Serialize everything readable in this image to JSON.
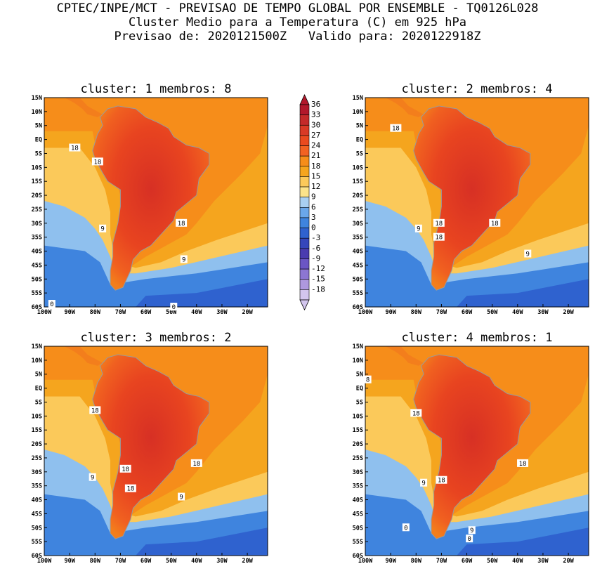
{
  "header": {
    "line1": "CPTEC/INPE/MCT - PREVISAO DE TEMPO GLOBAL POR ENSEMBLE - TQ0126L028",
    "line2": "Cluster Medio para a Temperatura (C) em 925 hPa",
    "line3": "Previsao de: 2020121500Z   Valido para: 2020122918Z"
  },
  "colorbar": {
    "levels": [
      "36",
      "33",
      "30",
      "27",
      "24",
      "21",
      "18",
      "15",
      "12",
      "9",
      "6",
      "3",
      "0",
      "-3",
      "-6",
      "-9",
      "-12",
      "-15",
      "-18"
    ],
    "colors": [
      "#b2182b",
      "#c42a2a",
      "#d93a26",
      "#ea4a1f",
      "#f26222",
      "#f68d1a",
      "#f5a51e",
      "#fbc95a",
      "#fbe38a",
      "#a9d0f2",
      "#6aa7ea",
      "#3f84de",
      "#2f62cf",
      "#3546bb",
      "#4a3cb0",
      "#6b56c4",
      "#8c76d2",
      "#ae98de",
      "#d3c6ee"
    ]
  },
  "axes": {
    "lat_labels": [
      "15N",
      "10N",
      "5N",
      "EQ",
      "5S",
      "10S",
      "15S",
      "20S",
      "25S",
      "30S",
      "35S",
      "40S",
      "45S",
      "50S",
      "55S",
      "60S"
    ],
    "lon_labels": [
      "100W",
      "90W",
      "80W",
      "70W",
      "60W",
      "50W",
      "40W",
      "30W",
      "20W"
    ]
  },
  "panels": [
    {
      "title": "cluster: 1   membros: 8",
      "contour_labels": [
        {
          "text": "18",
          "lon": -88,
          "lat": -3
        },
        {
          "text": "18",
          "lon": -79,
          "lat": -8
        },
        {
          "text": "18",
          "lon": -46,
          "lat": -30
        },
        {
          "text": "9",
          "lon": -77,
          "lat": -32
        },
        {
          "text": "9",
          "lon": -45,
          "lat": -43
        },
        {
          "text": "0",
          "lon": -97,
          "lat": -59
        },
        {
          "text": "0",
          "lon": -49,
          "lat": -60
        }
      ]
    },
    {
      "title": "cluster: 2   membros: 4",
      "contour_labels": [
        {
          "text": "18",
          "lon": -88,
          "lat": 4
        },
        {
          "text": "18",
          "lon": -71,
          "lat": -30
        },
        {
          "text": "18",
          "lon": -71,
          "lat": -35
        },
        {
          "text": "18",
          "lon": -49,
          "lat": -30
        },
        {
          "text": "9",
          "lon": -79,
          "lat": -32
        },
        {
          "text": "9",
          "lon": -36,
          "lat": -41
        }
      ]
    },
    {
      "title": "cluster: 3   membros: 2",
      "contour_labels": [
        {
          "text": "18",
          "lon": -80,
          "lat": -8
        },
        {
          "text": "18",
          "lon": -68,
          "lat": -29
        },
        {
          "text": "18",
          "lon": -66,
          "lat": -36
        },
        {
          "text": "18",
          "lon": -40,
          "lat": -27
        },
        {
          "text": "9",
          "lon": -81,
          "lat": -32
        },
        {
          "text": "9",
          "lon": -46,
          "lat": -39
        }
      ]
    },
    {
      "title": "cluster: 4   membros: 1",
      "contour_labels": [
        {
          "text": "8",
          "lon": -99,
          "lat": 3
        },
        {
          "text": "18",
          "lon": -80,
          "lat": -9
        },
        {
          "text": "18",
          "lon": -70,
          "lat": -33
        },
        {
          "text": "18",
          "lon": -38,
          "lat": -27
        },
        {
          "text": "9",
          "lon": -77,
          "lat": -34
        },
        {
          "text": "9",
          "lon": -58,
          "lat": -51
        },
        {
          "text": "0",
          "lon": -84,
          "lat": -50
        },
        {
          "text": "0",
          "lon": -59,
          "lat": -54
        }
      ]
    }
  ]
}
